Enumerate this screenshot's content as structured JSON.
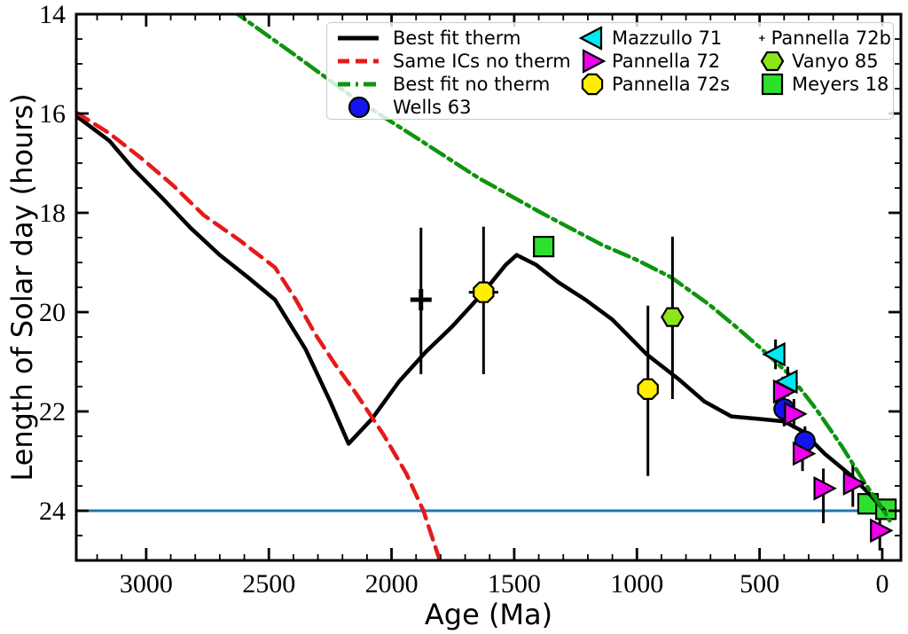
{
  "figure": {
    "background": "#ffffff",
    "x_tick_labels": [
      "3000",
      "2500",
      "2000",
      "1500",
      "1000",
      "500",
      "0"
    ],
    "x_tick_values": [
      3000,
      2500,
      2000,
      1500,
      1000,
      500,
      0
    ],
    "y_tick_labels": [
      "14",
      "16",
      "18",
      "20",
      "22",
      "24"
    ],
    "y_tick_values": [
      14,
      16,
      18,
      20,
      22,
      24
    ],
    "x_minor_step": 100,
    "y_minor_step": 0.5
  },
  "chart_data": {
    "type": "line",
    "title": "",
    "xlabel": "Age (Ma)",
    "ylabel": "Length of Solar day (hours)",
    "x_axis_reversed": true,
    "y_axis_inverted": true,
    "xlim": [
      3285,
      -76
    ],
    "ylim": [
      25,
      14
    ],
    "grid": false,
    "legend_position": "upper right",
    "reference_line": {
      "y": 24,
      "color": "#1f77b4"
    },
    "series": [
      {
        "name": "Best fit therm",
        "style": "solid",
        "color": "#000000",
        "points": [
          [
            3285,
            16.05
          ],
          [
            3150,
            16.55
          ],
          [
            3055,
            17.1
          ],
          [
            2935,
            17.7
          ],
          [
            2820,
            18.3
          ],
          [
            2700,
            18.85
          ],
          [
            2585,
            19.3
          ],
          [
            2475,
            19.75
          ],
          [
            2350,
            20.75
          ],
          [
            2250,
            21.8
          ],
          [
            2175,
            22.65
          ],
          [
            2080,
            22.15
          ],
          [
            1970,
            21.4
          ],
          [
            1860,
            20.8
          ],
          [
            1755,
            20.3
          ],
          [
            1625,
            19.6
          ],
          [
            1535,
            19.05
          ],
          [
            1490,
            18.85
          ],
          [
            1410,
            19.05
          ],
          [
            1320,
            19.4
          ],
          [
            1210,
            19.75
          ],
          [
            1100,
            20.15
          ],
          [
            960,
            20.85
          ],
          [
            830,
            21.35
          ],
          [
            725,
            21.8
          ],
          [
            615,
            22.1
          ],
          [
            505,
            22.15
          ],
          [
            400,
            22.2
          ],
          [
            325,
            22.4
          ],
          [
            235,
            22.85
          ],
          [
            125,
            23.3
          ],
          [
            55,
            23.65
          ],
          [
            -10,
            24.0
          ]
        ]
      },
      {
        "name": "Same ICs no therm",
        "style": "dashed",
        "color": "#e51a1a",
        "points": [
          [
            3285,
            15.98
          ],
          [
            3150,
            16.4
          ],
          [
            3020,
            16.9
          ],
          [
            2890,
            17.45
          ],
          [
            2765,
            18.05
          ],
          [
            2620,
            18.55
          ],
          [
            2475,
            19.1
          ],
          [
            2390,
            19.75
          ],
          [
            2310,
            20.45
          ],
          [
            2230,
            21.05
          ],
          [
            2150,
            21.6
          ],
          [
            2035,
            22.45
          ],
          [
            1940,
            23.25
          ],
          [
            1870,
            24.0
          ],
          [
            1800,
            25.05
          ]
        ]
      },
      {
        "name": "Best fit no therm",
        "style": "dashdot",
        "color": "#0e940e",
        "points": [
          [
            2650,
            13.92
          ],
          [
            2400,
            14.8
          ],
          [
            2150,
            15.7
          ],
          [
            1895,
            16.5
          ],
          [
            1645,
            17.3
          ],
          [
            1390,
            18.0
          ],
          [
            1140,
            18.65
          ],
          [
            1000,
            18.95
          ],
          [
            860,
            19.3
          ],
          [
            705,
            19.85
          ],
          [
            595,
            20.3
          ],
          [
            490,
            20.75
          ],
          [
            380,
            21.25
          ],
          [
            270,
            21.95
          ],
          [
            165,
            22.7
          ],
          [
            70,
            23.45
          ],
          [
            0,
            23.95
          ],
          [
            -30,
            24.2
          ]
        ]
      }
    ],
    "scatter": [
      {
        "name": "Pannella 72b",
        "marker": "plus",
        "color": "#000000",
        "points": [
          {
            "x": 1880,
            "y": 19.75,
            "lo": 18.3,
            "hi": 21.25
          }
        ]
      },
      {
        "name": "Pannella 72s",
        "marker": "octagon",
        "color": "#ffee00",
        "points": [
          {
            "x": 1625,
            "y": 19.6,
            "lo": 18.28,
            "hi": 21.25,
            "xerr": 60
          },
          {
            "x": 955,
            "y": 21.55,
            "lo": 19.87,
            "hi": 23.3,
            "xerr": 40
          }
        ]
      },
      {
        "name": "Vanyo 85",
        "marker": "hexagon",
        "color": "#8ce61c",
        "points": [
          {
            "x": 855,
            "y": 20.1,
            "lo": 18.48,
            "hi": 21.75,
            "xerr": 28
          }
        ]
      },
      {
        "name": "Meyers 18",
        "marker": "square",
        "color": "#2ee02e",
        "points": [
          {
            "x": 1380,
            "y": 18.68
          },
          {
            "x": 58,
            "y": 23.86
          },
          {
            "x": -15,
            "y": 23.97
          }
        ]
      },
      {
        "name": "Mazzullo 71",
        "marker": "triangle-left",
        "color": "#00e8f0",
        "points": [
          {
            "x": 435,
            "y": 20.85,
            "lo": 20.55,
            "hi": 21.15,
            "xerr": 28
          },
          {
            "x": 385,
            "y": 21.4,
            "lo": 21.1,
            "hi": 21.7
          }
        ]
      },
      {
        "name": "Wells 63",
        "marker": "circle",
        "color": "#1414f0",
        "points": [
          {
            "x": 400,
            "y": 21.95,
            "lo": 21.65,
            "hi": 22.3
          },
          {
            "x": 315,
            "y": 22.6,
            "lo": 22.3,
            "hi": 22.95
          }
        ]
      },
      {
        "name": "Pannella 72",
        "marker": "triangle-right",
        "color": "#ee00ee",
        "points": [
          {
            "x": 405,
            "y": 21.6,
            "lo": 21.3,
            "hi": 21.95
          },
          {
            "x": 360,
            "y": 22.05,
            "lo": 21.75,
            "hi": 22.35
          },
          {
            "x": 325,
            "y": 22.85,
            "lo": 22.55,
            "hi": 23.2
          },
          {
            "x": 240,
            "y": 23.55,
            "lo": 23.15,
            "hi": 24.25,
            "xerr": 30
          },
          {
            "x": 120,
            "y": 23.45,
            "lo": 23.08,
            "hi": 23.92,
            "xerr": 30
          },
          {
            "x": 10,
            "y": 24.4,
            "lo": 24.15,
            "hi": 24.8,
            "xerr": 30
          }
        ]
      }
    ]
  },
  "legend": {
    "columns": [
      [
        {
          "type": "line-solid",
          "color": "#000000",
          "label": "Best fit therm"
        },
        {
          "type": "line-dashed",
          "color": "#e51a1a",
          "label": "Same ICs no therm"
        },
        {
          "type": "line-dashdot",
          "color": "#0e940e",
          "label": "Best fit no therm"
        },
        {
          "type": "circle",
          "color": "#1414f0",
          "label": "Wells 63"
        }
      ],
      [
        {
          "type": "triangle-left",
          "color": "#00e8f0",
          "label": "Mazzullo 71"
        },
        {
          "type": "triangle-right",
          "color": "#ee00ee",
          "label": "Pannella 72"
        },
        {
          "type": "octagon",
          "color": "#ffee00",
          "label": "Pannella 72s"
        }
      ],
      [
        {
          "type": "plus",
          "color": "#000000",
          "label": "Pannella 72b"
        },
        {
          "type": "hexagon",
          "color": "#8ce61c",
          "label": "Vanyo 85"
        },
        {
          "type": "square",
          "color": "#2ee02e",
          "label": "Meyers 18"
        }
      ]
    ]
  }
}
